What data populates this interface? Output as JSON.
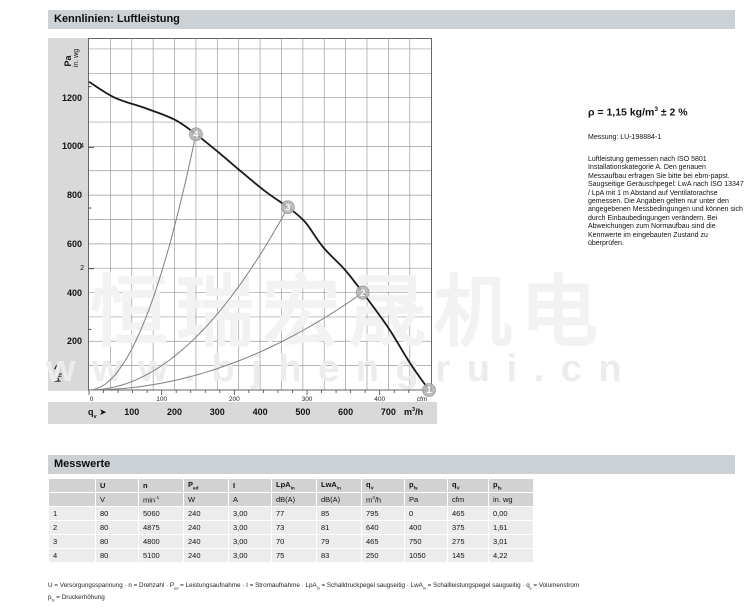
{
  "header": {
    "title": "Kennlinien: Luftleistung"
  },
  "side_note": {
    "density": "ρ = 1,15 kg/m^{3} ± 2 %",
    "measurement": "Messung: LU-198884-1",
    "description": "Luftleistung gemessen nach ISO 5801 Installationskategorie A. Den genauen Messaufbau erfragen Sie bitte bei ebm-papst. Saugseitige Geräuschpegel: LwA nach ISO 13347 / LpA mit 1 m Abstand auf Ventilatorachse gemessen. Die Angaben gelten nur unter den angegebenen Messbedingungen und können sich durch Einbaubedingungen verändern. Bei Abweichungen zum Normaufbau sind die Kennwerte im eingebauten Zustand zu überprüfen."
  },
  "watermark": {
    "cn": "恒瑞宏晟机电",
    "url": "w w w . b j h e n g r u i . c n"
  },
  "chart_data": {
    "type": "line",
    "title": "Kennlinien: Luftleistung",
    "xlabel": "q_{v} (m³/h)",
    "ylabel": "p_{fs} (Pa)",
    "x_axis_m3h": {
      "min": 0,
      "max": 800,
      "grid_step": 50,
      "tick_labels": [
        100,
        200,
        300,
        400,
        500,
        600,
        700
      ],
      "unit": "m^{3}/h",
      "axis_prefix": "q_{v}",
      "arrow": "➤"
    },
    "x_axis_cfm": {
      "tick_labels": [
        0,
        100,
        200,
        300,
        400
      ],
      "unit": "cfm",
      "m3h_per_cfm": 1.699,
      "minor_step": 20,
      "minor_max": 460
    },
    "y_axis_pa": {
      "min": 0,
      "max": 1445,
      "grid_step": 100,
      "tick_labels": [
        200,
        400,
        600,
        800,
        1000,
        1200
      ],
      "unit": "Pa",
      "axis_label": "p_{fs}",
      "arrow": "➤"
    },
    "y_axis_inwg": {
      "tick_labels": [
        2,
        4
      ],
      "minor_ticks": [
        1,
        2,
        3,
        4,
        5
      ],
      "pa_per_inwg": 249,
      "unit": "in. wg"
    },
    "series": [
      {
        "name": "fan-curve",
        "points": [
          [
            0,
            1265
          ],
          [
            60,
            1200
          ],
          [
            130,
            1158
          ],
          [
            200,
            1110
          ],
          [
            250,
            1050
          ],
          [
            310,
            965
          ],
          [
            350,
            905
          ],
          [
            410,
            818
          ],
          [
            465,
            750
          ],
          [
            505,
            690
          ],
          [
            547,
            587
          ],
          [
            600,
            490
          ],
          [
            640,
            400
          ],
          [
            700,
            255
          ],
          [
            750,
            112
          ],
          [
            795,
            0
          ]
        ]
      }
    ],
    "system_curves": [
      {
        "name": "system-curve-4",
        "through_q": 250,
        "through_p": 1050
      },
      {
        "name": "system-curve-3",
        "through_q": 465,
        "through_p": 750
      },
      {
        "name": "system-curve-2",
        "through_q": 640,
        "through_p": 400
      }
    ],
    "operating_points": [
      {
        "label": "1",
        "q_m3h": 795,
        "p_pa": 0
      },
      {
        "label": "2",
        "q_m3h": 640,
        "p_pa": 400
      },
      {
        "label": "3",
        "q_m3h": 465,
        "p_pa": 750
      },
      {
        "label": "4",
        "q_m3h": 250,
        "p_pa": 1050
      }
    ],
    "colors": {
      "fan_curve": "#1a1a1a",
      "system_curve": "#808080",
      "grid": "#9b9b9b",
      "border": "#666666",
      "marker_fill": "#b3b3b3",
      "marker_text": "#ffffff"
    }
  },
  "measurements": {
    "title": "Messwerte",
    "columns": [
      "",
      "U",
      "n",
      "P_{ed}",
      "I",
      "LpA_{in}",
      "LwA_{in}",
      "q_{V}",
      "p_{fs}",
      "q_{V}",
      "p_{fs}"
    ],
    "units": [
      "",
      "V",
      "min^{-1}",
      "W",
      "A",
      "dB(A)",
      "dB(A)",
      "m^{3}/h",
      "Pa",
      "cfm",
      "in. wg"
    ],
    "rows": [
      [
        "1",
        "80",
        "5060",
        "240",
        "3,00",
        "77",
        "85",
        "795",
        "0",
        "465",
        "0,00"
      ],
      [
        "2",
        "80",
        "4875",
        "240",
        "3,00",
        "73",
        "81",
        "640",
        "400",
        "375",
        "1,61"
      ],
      [
        "3",
        "80",
        "4800",
        "240",
        "3,00",
        "70",
        "79",
        "465",
        "750",
        "275",
        "3,01"
      ],
      [
        "4",
        "80",
        "5100",
        "240",
        "3,00",
        "75",
        "83",
        "250",
        "1050",
        "145",
        "4,22"
      ]
    ]
  },
  "legend": {
    "separator": " · ",
    "line1": [
      "U = Versorgungsspannung",
      "n = Drehzahl",
      "P_{ed} = Leistungsaufnahme",
      "I = Stromaufnahme",
      "LpA_{in} = Schalldruckpegel saugseitig",
      "LwA_{in} = Schallleistungspegel saugseitig",
      "q_{v} = Volumenstrom"
    ],
    "line2": [
      "p_{fs} = Druckerhöhung"
    ]
  }
}
